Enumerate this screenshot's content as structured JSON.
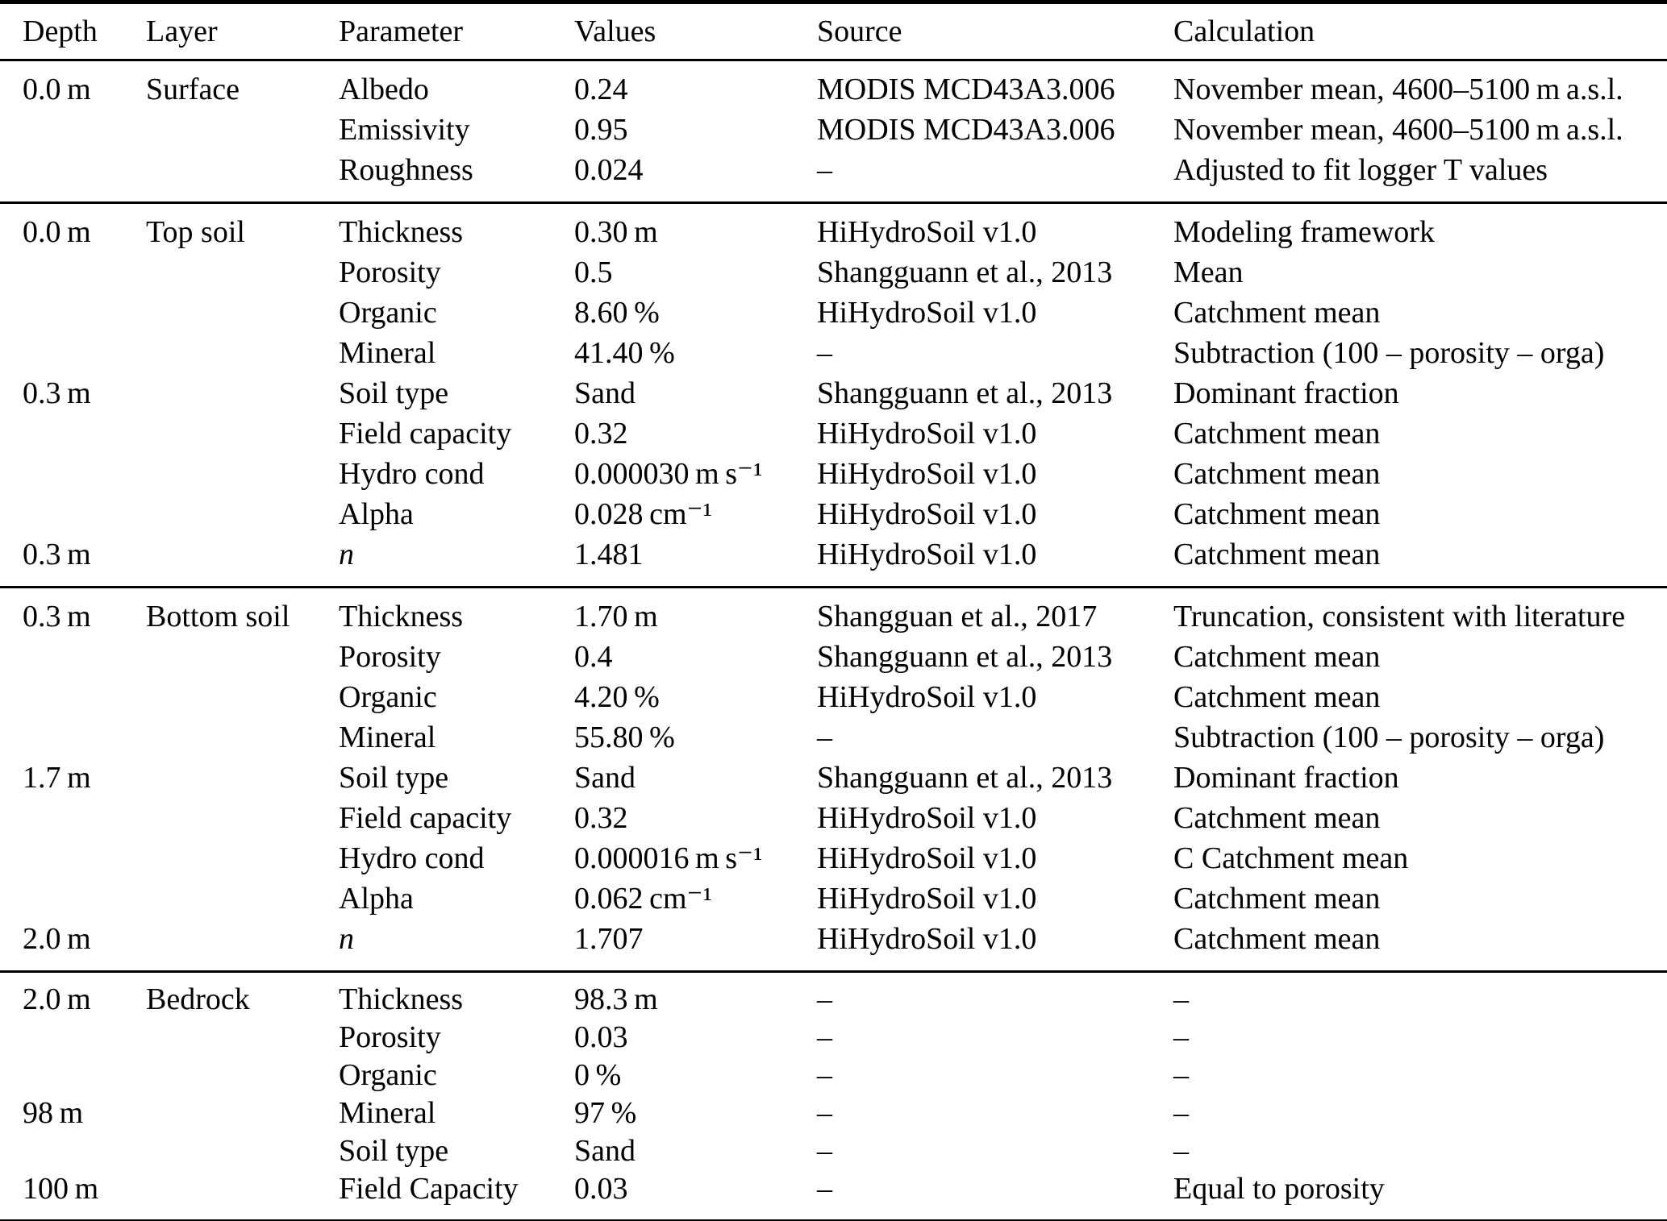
{
  "columns": [
    "Depth",
    "Layer",
    "Parameter",
    "Values",
    "Source",
    "Calculation"
  ],
  "sections": [
    {
      "name": "Surface",
      "rows": [
        {
          "depth": "0.0 m",
          "layer": "Surface",
          "parameter": "Albedo",
          "values": "0.24",
          "source": "MODIS MCD43A3.006",
          "calculation": "November mean, 4600–5100 m a.s.l."
        },
        {
          "depth": "",
          "layer": "",
          "parameter": "Emissivity",
          "values": "0.95",
          "source": "MODIS MCD43A3.006",
          "calculation": "November mean, 4600–5100 m a.s.l."
        },
        {
          "depth": "",
          "layer": "",
          "parameter": "Roughness",
          "values": "0.024",
          "source": "–",
          "calculation": "Adjusted to fit logger T values"
        }
      ]
    },
    {
      "name": "Top soil",
      "rows": [
        {
          "depth": "0.0 m",
          "layer": "Top soil",
          "parameter": "Thickness",
          "values": "0.30 m",
          "source": "HiHydroSoil v1.0",
          "calculation": "Modeling framework"
        },
        {
          "depth": "",
          "layer": "",
          "parameter": "Porosity",
          "values": "0.5",
          "source": "Shangguann et al., 2013",
          "calculation": "Mean"
        },
        {
          "depth": "",
          "layer": "",
          "parameter": "Organic",
          "values": "8.60 %",
          "source": "HiHydroSoil v1.0",
          "calculation": "Catchment mean"
        },
        {
          "depth": "",
          "layer": "",
          "parameter": "Mineral",
          "values": "41.40 %",
          "source": "–",
          "calculation": "Subtraction (100 – porosity – orga)"
        },
        {
          "depth": "0.3 m",
          "layer": "",
          "parameter": "Soil type",
          "values": "Sand",
          "source": "Shangguann et al., 2013",
          "calculation": "Dominant fraction"
        },
        {
          "depth": "",
          "layer": "",
          "parameter": "Field capacity",
          "values": "0.32",
          "source": "HiHydroSoil v1.0",
          "calculation": "Catchment mean"
        },
        {
          "depth": "",
          "layer": "",
          "parameter": "Hydro cond",
          "values": "0.000030 m s⁻¹",
          "source": "HiHydroSoil v1.0",
          "calculation": "Catchment mean"
        },
        {
          "depth": "",
          "layer": "",
          "parameter": "Alpha",
          "values": "0.028 cm⁻¹",
          "source": "HiHydroSoil v1.0",
          "calculation": "Catchment mean"
        },
        {
          "depth": "0.3 m",
          "layer": "",
          "parameter": "n",
          "parameter_italic": true,
          "values": "1.481",
          "source": "HiHydroSoil v1.0",
          "calculation": "Catchment mean"
        }
      ]
    },
    {
      "name": "Bottom soil",
      "rows": [
        {
          "depth": "0.3 m",
          "layer": "Bottom soil",
          "parameter": "Thickness",
          "values": "1.70 m",
          "source": "Shangguan et al., 2017",
          "calculation": "Truncation, consistent with literature"
        },
        {
          "depth": "",
          "layer": "",
          "parameter": "Porosity",
          "values": "0.4",
          "source": "Shangguann et al., 2013",
          "calculation": "Catchment mean"
        },
        {
          "depth": "",
          "layer": "",
          "parameter": "Organic",
          "values": "4.20 %",
          "source": "HiHydroSoil v1.0",
          "calculation": "Catchment mean"
        },
        {
          "depth": "",
          "layer": "",
          "parameter": "Mineral",
          "values": "55.80 %",
          "source": "–",
          "calculation": "Subtraction (100 – porosity – orga)"
        },
        {
          "depth": "1.7 m",
          "layer": "",
          "parameter": "Soil type",
          "values": "Sand",
          "source": "Shangguann et al., 2013",
          "calculation": "Dominant fraction"
        },
        {
          "depth": "",
          "layer": "",
          "parameter": "Field capacity",
          "values": "0.32",
          "source": "HiHydroSoil v1.0",
          "calculation": "Catchment mean"
        },
        {
          "depth": "",
          "layer": "",
          "parameter": "Hydro cond",
          "values": "0.000016 m s⁻¹",
          "source": "HiHydroSoil v1.0",
          "calculation": "C Catchment mean"
        },
        {
          "depth": "",
          "layer": "",
          "parameter": "Alpha",
          "values": "0.062 cm⁻¹",
          "source": "HiHydroSoil v1.0",
          "calculation": "Catchment mean"
        },
        {
          "depth": "2.0 m",
          "layer": "",
          "parameter": "n",
          "parameter_italic": true,
          "values": "1.707",
          "source": "HiHydroSoil v1.0",
          "calculation": "Catchment mean"
        }
      ]
    },
    {
      "name": "Bedrock",
      "rows": [
        {
          "depth": "2.0 m",
          "layer": "Bedrock",
          "parameter": "Thickness",
          "values": "98.3 m",
          "source": "–",
          "calculation": "–"
        },
        {
          "depth": "",
          "layer": "",
          "parameter": "Porosity",
          "values": "0.03",
          "source": "–",
          "calculation": "–"
        },
        {
          "depth": "",
          "layer": "",
          "parameter": "Organic",
          "values": "0 %",
          "source": "–",
          "calculation": "–"
        },
        {
          "depth": "98 m",
          "layer": "",
          "parameter": "Mineral",
          "values": "97 %",
          "source": "–",
          "calculation": "–"
        },
        {
          "depth": "",
          "layer": "",
          "parameter": "Soil type",
          "values": "Sand",
          "source": "–",
          "calculation": "–"
        },
        {
          "depth": "100 m",
          "layer": "",
          "parameter": "Field Capacity",
          "values": "0.03",
          "source": "–",
          "calculation": "Equal to porosity"
        }
      ]
    }
  ]
}
